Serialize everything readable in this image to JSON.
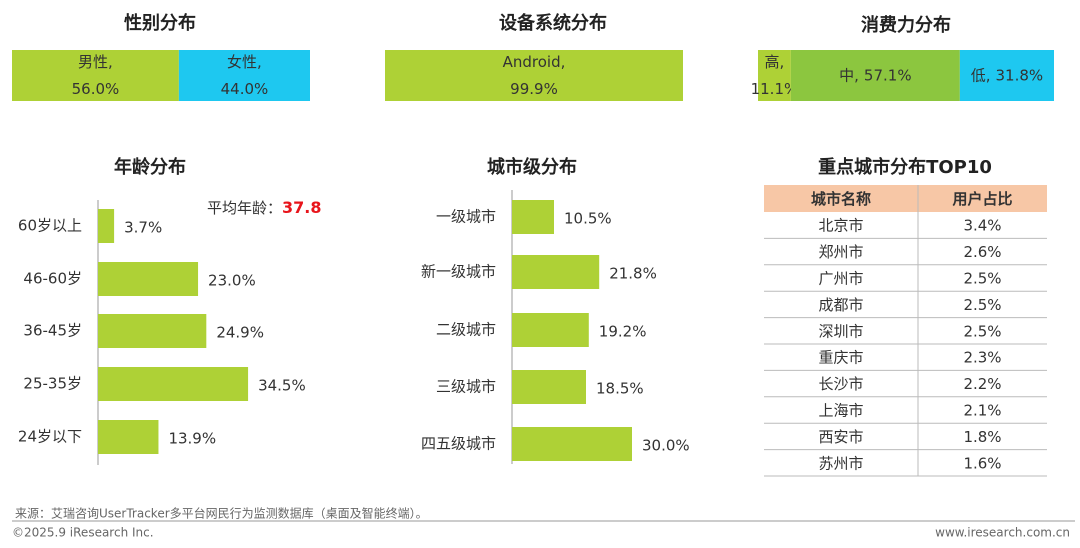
{
  "chart_data": [
    {
      "type": "stacked_bar",
      "title": "性别分布",
      "series": [
        {
          "name": "男性,",
          "color": "#aed136",
          "values": [
            56.0
          ],
          "value_labels": [
            "56.0%"
          ]
        },
        {
          "name": "女性,",
          "color": "#1ec8f0",
          "values": [
            44.0
          ],
          "value_labels": [
            "44.0%"
          ]
        }
      ]
    },
    {
      "type": "stacked_bar",
      "title": "设备系统分布",
      "series": [
        {
          "name": "Android,",
          "color": "#aed136",
          "values": [
            99.9
          ],
          "value_labels": [
            "99.9%"
          ]
        }
      ]
    },
    {
      "type": "stacked_bar",
      "title": "消费力分布",
      "series": [
        {
          "name": "高,",
          "color": "#aed136",
          "values": [
            11.1
          ],
          "value_labels": [
            "11.1%"
          ]
        },
        {
          "name": "中,",
          "color": "#8cc63f",
          "values": [
            57.1
          ],
          "value_labels": [
            "57.1%"
          ]
        },
        {
          "name": "低,",
          "color": "#1ec8f0",
          "values": [
            31.8
          ],
          "value_labels": [
            "31.8%"
          ]
        }
      ]
    },
    {
      "type": "bar",
      "title": "年龄分布",
      "color": "#aed136",
      "categories": [
        "60岁以上",
        "46-60岁",
        "36-45岁",
        "25-35岁",
        "24岁以下"
      ],
      "values": [
        3.7,
        23.0,
        24.9,
        34.5,
        13.9
      ],
      "value_labels": [
        "3.7%",
        "23.0%",
        "24.9%",
        "34.5%",
        "13.9%"
      ],
      "annotation": {
        "label": "平均年龄：",
        "value": 37.8
      }
    },
    {
      "type": "bar",
      "title": "城市级分布",
      "color": "#aed136",
      "categories": [
        "一级城市",
        "新一级城市",
        "二级城市",
        "三级城市",
        "四五级城市"
      ],
      "values": [
        10.5,
        21.8,
        19.2,
        18.5,
        30.0
      ],
      "value_labels": [
        "10.5%",
        "21.8%",
        "19.2%",
        "18.5%",
        "30.0%"
      ]
    }
  ],
  "table": {
    "title": "重点城市分布TOP10",
    "header": [
      "城市名称",
      "用户占比"
    ],
    "rows": [
      [
        "北京市",
        "3.4%"
      ],
      [
        "郑州市",
        "2.6%"
      ],
      [
        "广州市",
        "2.5%"
      ],
      [
        "成都市",
        "2.5%"
      ],
      [
        "深圳市",
        "2.5%"
      ],
      [
        "重庆市",
        "2.3%"
      ],
      [
        "长沙市",
        "2.2%"
      ],
      [
        "上海市",
        "2.1%"
      ],
      [
        "西安市",
        "1.8%"
      ],
      [
        "苏州市",
        "1.6%"
      ]
    ]
  },
  "footer": {
    "source": "来源：艾瑞咨询UserTracker多平台网民行为监测数据库（桌面及智能终端）。",
    "copyright": "©2025.9 iResearch Inc.",
    "website": "www.iresearch.com.cn"
  }
}
